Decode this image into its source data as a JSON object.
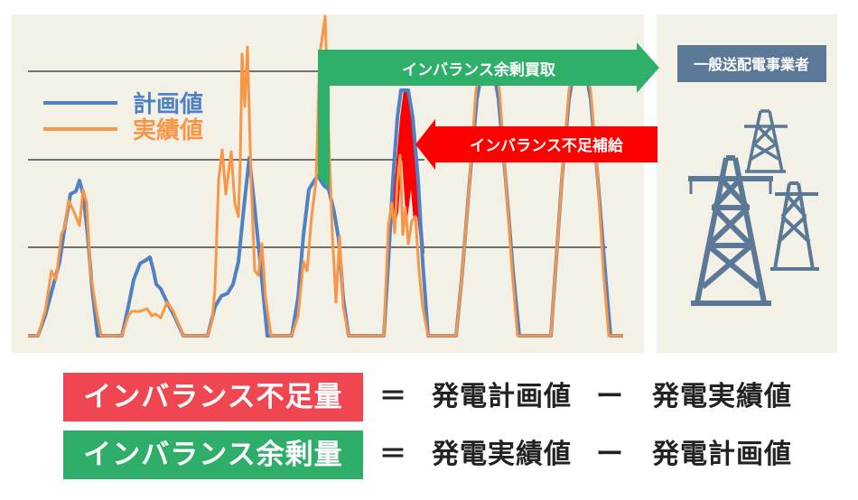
{
  "legend": {
    "plan": "計画値",
    "actual": "実績値"
  },
  "colors": {
    "plan": "#4f81c4",
    "actual": "#f79646",
    "surplus": "#2fb06a",
    "shortage": "#ff0000",
    "operator": "#5b7896",
    "panel": "#f3f1e6"
  },
  "arrows": {
    "surplus_label": "インバランス余剰買取",
    "shortage_label": "インバランス不足補給"
  },
  "operator": {
    "label": "一般送配電事業者",
    "icon": "power-tower-icon"
  },
  "equations": [
    {
      "lhs": "インバランス不足量",
      "eq": "＝",
      "a": "発電計画値",
      "op": "ー",
      "b": "発電実績値",
      "color": "#ef4652"
    },
    {
      "lhs": "インバランス余剰量",
      "eq": "＝",
      "a": "発電実績値",
      "op": "ー",
      "b": "発電計画値",
      "color": "#2fae6a"
    }
  ]
}
